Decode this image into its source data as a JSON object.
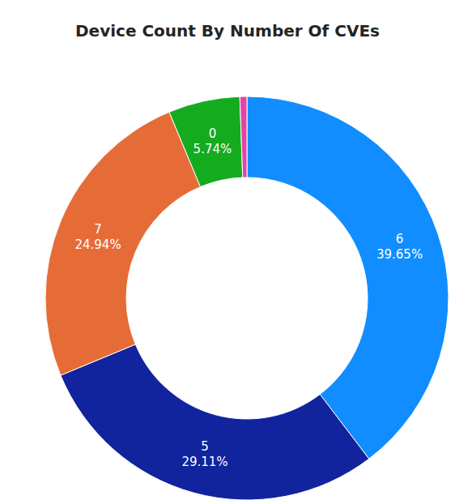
{
  "chart_data": {
    "type": "pie",
    "title": "Device Count By Number Of CVEs",
    "categories": [
      "6",
      "5",
      "7",
      "0",
      null
    ],
    "values": [
      39.65,
      29.11,
      24.94,
      5.74,
      0.56
    ],
    "value_labels": [
      "39.65%",
      "29.11%",
      "24.94%",
      "5.74%",
      null
    ],
    "colors": [
      "#118DFF",
      "#12239E",
      "#E66C37",
      "#15AB1F",
      "#E044A7"
    ],
    "data_labels": true
  }
}
